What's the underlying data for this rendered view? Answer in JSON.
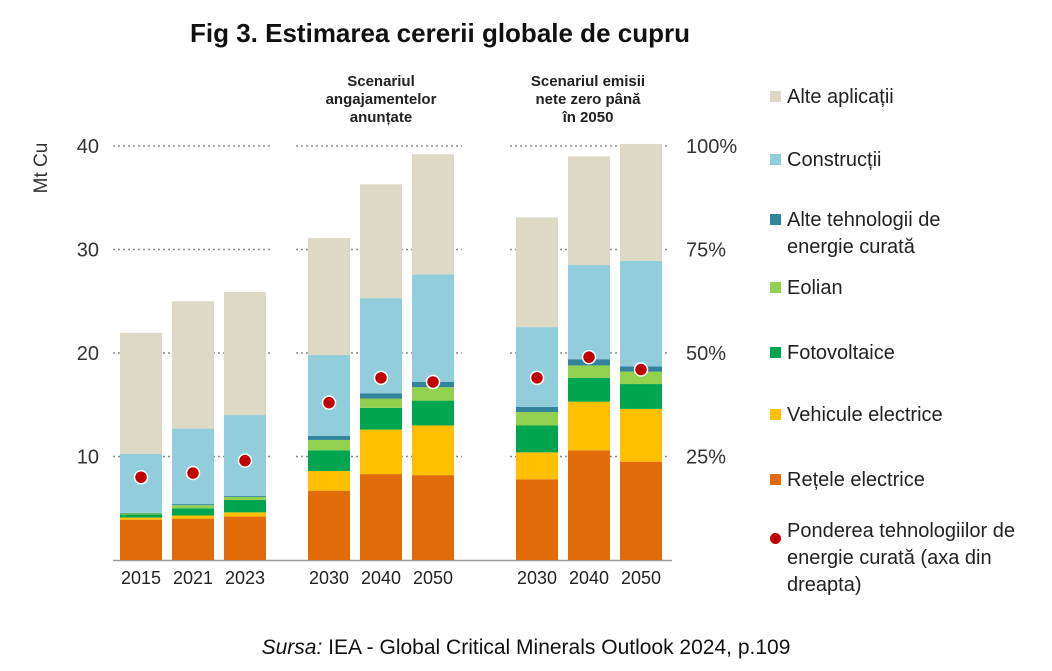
{
  "chart_data": {
    "type": "bar",
    "title": "Fig 3. Estimarea cererii globale de cupru",
    "ylabel": "Mt Cu",
    "ylim": [
      0,
      40
    ],
    "y_ticks": [
      10,
      20,
      30,
      40
    ],
    "right_axis_ticks": [
      "25%",
      "50%",
      "75%",
      "100%"
    ],
    "groups": [
      {
        "label": "",
        "categories": [
          "2015",
          "2021",
          "2023"
        ]
      },
      {
        "label": "Scenariul angajamentelor anunțate",
        "categories": [
          "2030",
          "2040",
          "2050"
        ]
      },
      {
        "label": "Scenariul emisii nete zero până în 2050",
        "categories": [
          "2030",
          "2040",
          "2050"
        ]
      }
    ],
    "series": [
      {
        "name": "Rețele electrice",
        "color": "#E36C0A",
        "values": [
          3.9,
          4.0,
          4.2,
          6.7,
          8.3,
          8.2,
          7.8,
          10.6,
          9.5
        ]
      },
      {
        "name": "Vehicule electrice",
        "color": "#FFC000",
        "values": [
          0.2,
          0.3,
          0.4,
          1.9,
          4.3,
          4.8,
          2.6,
          4.7,
          5.1
        ]
      },
      {
        "name": "Fotovoltaice",
        "color": "#00A64F",
        "values": [
          0.3,
          0.7,
          1.2,
          2.0,
          2.1,
          2.4,
          2.6,
          2.3,
          2.4
        ]
      },
      {
        "name": "Eolian",
        "color": "#92D050",
        "values": [
          0.1,
          0.3,
          0.3,
          1.0,
          0.9,
          1.3,
          1.3,
          1.2,
          1.2
        ]
      },
      {
        "name": "Alte tehnologii de energie curată",
        "color": "#31849B",
        "values": [
          0.05,
          0.1,
          0.1,
          0.4,
          0.5,
          0.5,
          0.5,
          0.6,
          0.5
        ]
      },
      {
        "name": "Construcții",
        "color": "#92CDDC",
        "values": [
          5.7,
          7.3,
          7.8,
          7.8,
          9.2,
          10.4,
          7.7,
          9.1,
          10.2
        ]
      },
      {
        "name": "Alte aplicații",
        "color": "#DDD9C4",
        "values": [
          11.7,
          12.3,
          11.9,
          11.3,
          11.0,
          11.6,
          10.6,
          10.5,
          11.3
        ]
      }
    ],
    "share_series": {
      "name": "Ponderea tehnologiilor de energie curată (axa din dreapta)",
      "color": "#C00000",
      "values": [
        20,
        21,
        24,
        38,
        44,
        43,
        44,
        49,
        46
      ],
      "axis": "right",
      "ylim": [
        0,
        100
      ]
    },
    "grid": true,
    "legend_position": "right"
  },
  "source": {
    "prefix": "Sursa:",
    "text": " IEA - Global Critical Minerals Outlook 2024, p.109"
  }
}
